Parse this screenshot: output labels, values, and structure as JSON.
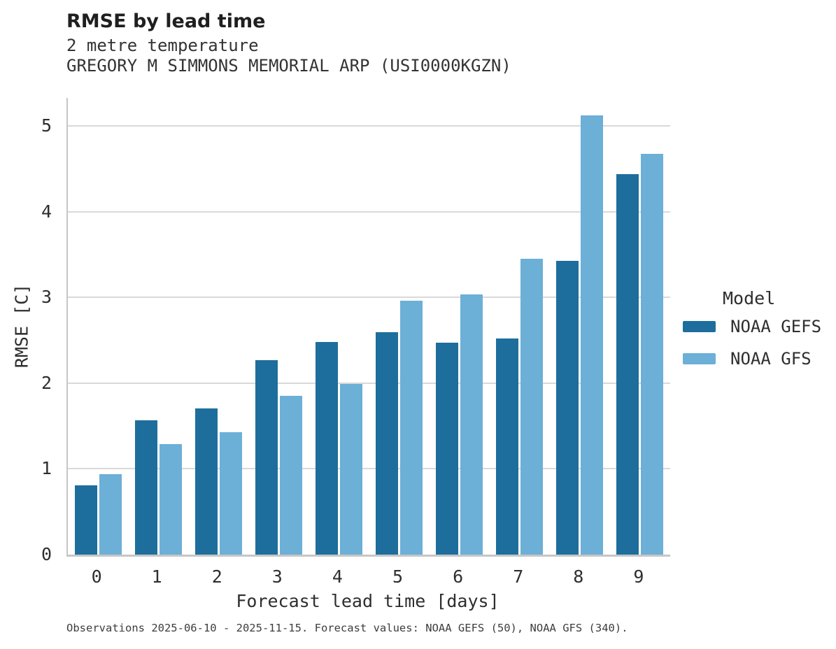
{
  "header": {
    "title": "RMSE by lead time",
    "subtitle1": "2 metre temperature",
    "subtitle2": "GREGORY M SIMMONS MEMORIAL ARP (USI0000KGZN)"
  },
  "chart_data": {
    "type": "bar",
    "title": "RMSE by lead time",
    "subtitle": "2 metre temperature",
    "station": "GREGORY M SIMMONS MEMORIAL ARP (USI0000KGZN)",
    "xlabel": "Forecast lead time [days]",
    "ylabel": "RMSE [C]",
    "categories": [
      "0",
      "1",
      "2",
      "3",
      "4",
      "5",
      "6",
      "7",
      "8",
      "9"
    ],
    "series": [
      {
        "name": "NOAA GEFS",
        "color": "#1d6e9c",
        "values": [
          0.81,
          1.57,
          1.71,
          2.27,
          2.48,
          2.6,
          2.47,
          2.52,
          3.43,
          4.44
        ]
      },
      {
        "name": "NOAA GFS",
        "color": "#6cafd7",
        "values": [
          0.94,
          1.29,
          1.43,
          1.85,
          1.99,
          2.96,
          3.04,
          3.45,
          5.13,
          4.68
        ]
      }
    ],
    "ylim": [
      0,
      5.33
    ],
    "yticks": [
      0,
      1,
      2,
      3,
      4,
      5
    ],
    "grid": true,
    "legend_title": "Model",
    "legend_position": "right"
  },
  "legend": {
    "title": "Model",
    "entries": [
      {
        "label": "NOAA GEFS",
        "color": "#1d6e9c"
      },
      {
        "label": "NOAA GFS",
        "color": "#6cafd7"
      }
    ]
  },
  "caption": "Observations 2025-06-10 - 2025-11-15. Forecast values: NOAA GEFS (50), NOAA GFS (340)."
}
